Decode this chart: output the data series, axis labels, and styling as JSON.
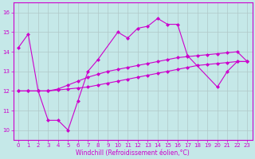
{
  "xlabel": "Windchill (Refroidissement éolien,°C)",
  "background_color": "#c5e8e8",
  "line_color": "#cc00cc",
  "xlim_min": -0.5,
  "xlim_max": 23.5,
  "ylim_min": 9.5,
  "ylim_max": 16.5,
  "xticks": [
    0,
    1,
    2,
    3,
    4,
    5,
    6,
    7,
    8,
    9,
    10,
    11,
    12,
    13,
    14,
    15,
    16,
    17,
    18,
    19,
    20,
    21,
    22,
    23
  ],
  "yticks": [
    10,
    11,
    12,
    13,
    14,
    15,
    16
  ],
  "grid_color": "#b0c8c8",
  "line1_x": [
    0,
    1,
    2,
    3,
    4,
    5,
    6,
    7,
    8,
    10,
    11,
    12,
    13,
    14,
    15,
    16,
    17,
    20,
    21,
    22,
    23
  ],
  "line1_y": [
    14.2,
    14.9,
    12.0,
    10.5,
    10.5,
    10.0,
    11.5,
    13.0,
    13.6,
    15.0,
    14.7,
    15.2,
    15.3,
    15.7,
    15.4,
    15.4,
    13.8,
    12.2,
    13.0,
    13.5,
    13.5
  ],
  "line2_x": [
    0,
    1,
    2,
    3,
    4,
    5,
    6,
    7,
    8,
    9,
    10,
    11,
    12,
    13,
    14,
    15,
    16,
    17,
    18,
    19,
    20,
    21,
    22,
    23
  ],
  "line2_y": [
    12.0,
    12.0,
    12.0,
    12.0,
    12.05,
    12.1,
    12.15,
    12.2,
    12.3,
    12.4,
    12.5,
    12.6,
    12.7,
    12.8,
    12.9,
    13.0,
    13.1,
    13.2,
    13.3,
    13.35,
    13.4,
    13.45,
    13.5,
    13.5
  ],
  "line3_x": [
    0,
    1,
    2,
    3,
    4,
    5,
    6,
    7,
    8,
    9,
    10,
    11,
    12,
    13,
    14,
    15,
    16,
    17,
    18,
    19,
    20,
    21,
    22,
    23
  ],
  "line3_y": [
    12.0,
    12.0,
    12.0,
    12.0,
    12.1,
    12.3,
    12.5,
    12.7,
    12.85,
    13.0,
    13.1,
    13.2,
    13.3,
    13.4,
    13.5,
    13.6,
    13.7,
    13.75,
    13.8,
    13.85,
    13.9,
    13.95,
    14.0,
    13.5
  ],
  "marker": "D",
  "markersize": 2.5,
  "linewidth": 0.8,
  "tick_fontsize": 5,
  "xlabel_fontsize": 5.5
}
